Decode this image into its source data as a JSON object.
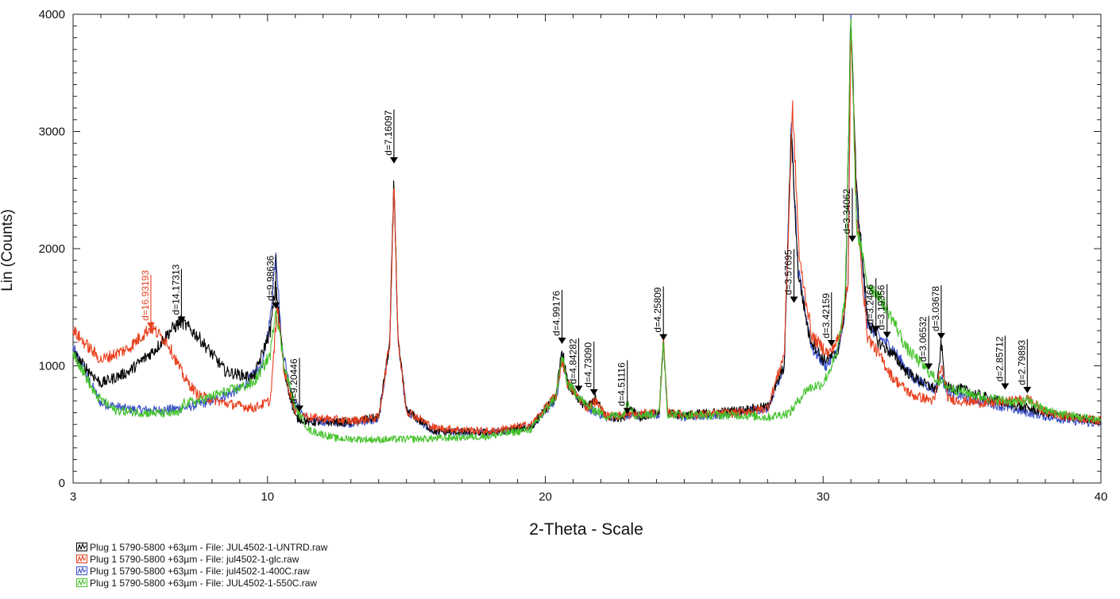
{
  "chart_data": {
    "type": "line",
    "xlabel": "2-Theta - Scale",
    "ylabel": "Lin (Counts)",
    "xlim": [
      3,
      40
    ],
    "ylim": [
      0,
      4000
    ],
    "x_ticks": [
      3,
      10,
      20,
      30,
      40
    ],
    "y_ticks": [
      0,
      1000,
      2000,
      3000,
      4000
    ],
    "grid": false,
    "legend_position": "bottom-left",
    "series": [
      {
        "name": "Plug 1 5790-5800 +63µm - File: JUL4502-1-UNTRD.raw",
        "color": "#000000",
        "points": [
          [
            3,
            1100
          ],
          [
            4,
            850
          ],
          [
            5,
            950
          ],
          [
            6,
            1150
          ],
          [
            6.5,
            1300
          ],
          [
            6.9,
            1380
          ],
          [
            7.5,
            1250
          ],
          [
            8.5,
            950
          ],
          [
            9.5,
            900
          ],
          [
            10.1,
            1300
          ],
          [
            10.3,
            1700
          ],
          [
            10.6,
            950
          ],
          [
            11,
            560
          ],
          [
            11.5,
            520
          ],
          [
            13,
            520
          ],
          [
            14,
            560
          ],
          [
            14.4,
            1200
          ],
          [
            14.55,
            2600
          ],
          [
            14.7,
            1200
          ],
          [
            15,
            620
          ],
          [
            16,
            440
          ],
          [
            18,
            430
          ],
          [
            19.5,
            480
          ],
          [
            20.4,
            750
          ],
          [
            20.6,
            1150
          ],
          [
            20.8,
            850
          ],
          [
            21.2,
            700
          ],
          [
            21.5,
            650
          ],
          [
            21.8,
            720
          ],
          [
            22.2,
            560
          ],
          [
            22.8,
            560
          ],
          [
            23.1,
            650
          ],
          [
            23.4,
            560
          ],
          [
            24.1,
            600
          ],
          [
            24.25,
            1220
          ],
          [
            24.4,
            600
          ],
          [
            25,
            580
          ],
          [
            27,
            620
          ],
          [
            28,
            650
          ],
          [
            28.6,
            1000
          ],
          [
            28.85,
            3000
          ],
          [
            29.1,
            1800
          ],
          [
            29.5,
            1250
          ],
          [
            30,
            1050
          ],
          [
            30.5,
            1100
          ],
          [
            30.8,
            1500
          ],
          [
            31,
            4000
          ],
          [
            31.2,
            2500
          ],
          [
            31.6,
            1400
          ],
          [
            32,
            1200
          ],
          [
            32.5,
            1100
          ],
          [
            33,
            950
          ],
          [
            33.6,
            850
          ],
          [
            34.1,
            800
          ],
          [
            34.25,
            1200
          ],
          [
            34.4,
            820
          ],
          [
            35,
            800
          ],
          [
            36,
            720
          ],
          [
            37,
            660
          ],
          [
            38,
            600
          ],
          [
            39,
            560
          ],
          [
            40,
            530
          ]
        ]
      },
      {
        "name": "Plug 1 5790-5800 +63µm - File: jul4502-1-glc.raw",
        "color": "#e8401e",
        "points": [
          [
            3,
            1300
          ],
          [
            4,
            1050
          ],
          [
            5,
            1150
          ],
          [
            5.8,
            1330
          ],
          [
            6.4,
            1200
          ],
          [
            7,
            900
          ],
          [
            7.5,
            750
          ],
          [
            8.5,
            680
          ],
          [
            9.5,
            640
          ],
          [
            10.1,
            700
          ],
          [
            10.35,
            1500
          ],
          [
            10.6,
            950
          ],
          [
            11,
            620
          ],
          [
            11.5,
            560
          ],
          [
            13,
            530
          ],
          [
            14,
            560
          ],
          [
            14.4,
            1200
          ],
          [
            14.55,
            2600
          ],
          [
            14.7,
            1200
          ],
          [
            15,
            620
          ],
          [
            16,
            470
          ],
          [
            18,
            440
          ],
          [
            19.5,
            500
          ],
          [
            20.4,
            750
          ],
          [
            20.6,
            1050
          ],
          [
            20.8,
            850
          ],
          [
            21.5,
            640
          ],
          [
            21.8,
            700
          ],
          [
            22.2,
            570
          ],
          [
            23,
            580
          ],
          [
            24.1,
            600
          ],
          [
            24.25,
            1220
          ],
          [
            24.4,
            600
          ],
          [
            25,
            580
          ],
          [
            27,
            600
          ],
          [
            28,
            640
          ],
          [
            28.6,
            1100
          ],
          [
            28.9,
            3200
          ],
          [
            29.15,
            1900
          ],
          [
            29.6,
            1250
          ],
          [
            30.2,
            1100
          ],
          [
            30.6,
            1250
          ],
          [
            30.9,
            1700
          ],
          [
            31,
            3900
          ],
          [
            31.2,
            2300
          ],
          [
            31.6,
            1250
          ],
          [
            32,
            1100
          ],
          [
            32.5,
            900
          ],
          [
            33.2,
            750
          ],
          [
            34,
            700
          ],
          [
            34.25,
            1000
          ],
          [
            34.5,
            720
          ],
          [
            35,
            700
          ],
          [
            36,
            680
          ],
          [
            36.8,
            700
          ],
          [
            37.4,
            720
          ],
          [
            38,
            600
          ],
          [
            39,
            560
          ],
          [
            40,
            530
          ]
        ]
      },
      {
        "name": "Plug 1 5790-5800 +63µm - File: jul4502-1-400C.raw",
        "color": "#3a4fc8",
        "points": [
          [
            3,
            1150
          ],
          [
            4,
            680
          ],
          [
            5,
            630
          ],
          [
            6,
            620
          ],
          [
            7,
            640
          ],
          [
            8,
            700
          ],
          [
            9,
            800
          ],
          [
            9.8,
            1000
          ],
          [
            10.1,
            1400
          ],
          [
            10.3,
            2000
          ],
          [
            10.5,
            1200
          ],
          [
            10.9,
            700
          ],
          [
            11.5,
            530
          ],
          [
            13,
            510
          ],
          [
            14,
            540
          ],
          [
            14.4,
            1200
          ],
          [
            14.55,
            2550
          ],
          [
            14.7,
            1200
          ],
          [
            15,
            600
          ],
          [
            16,
            440
          ],
          [
            18,
            430
          ],
          [
            19.5,
            480
          ],
          [
            20.4,
            720
          ],
          [
            20.6,
            1100
          ],
          [
            20.8,
            850
          ],
          [
            21.5,
            640
          ],
          [
            22.2,
            560
          ],
          [
            23,
            570
          ],
          [
            24.1,
            590
          ],
          [
            24.25,
            1200
          ],
          [
            24.4,
            590
          ],
          [
            25,
            560
          ],
          [
            27,
            600
          ],
          [
            28,
            640
          ],
          [
            28.6,
            1000
          ],
          [
            28.85,
            3050
          ],
          [
            29.1,
            1800
          ],
          [
            29.6,
            1150
          ],
          [
            30.1,
            1000
          ],
          [
            30.6,
            1150
          ],
          [
            30.9,
            1700
          ],
          [
            31,
            4000
          ],
          [
            31.2,
            2400
          ],
          [
            31.6,
            1350
          ],
          [
            32,
            1250
          ],
          [
            32.5,
            1150
          ],
          [
            33.2,
            900
          ],
          [
            34,
            800
          ],
          [
            34.25,
            900
          ],
          [
            34.5,
            780
          ],
          [
            35,
            740
          ],
          [
            36,
            680
          ],
          [
            37,
            620
          ],
          [
            38,
            570
          ],
          [
            39,
            530
          ],
          [
            40,
            500
          ]
        ]
      },
      {
        "name": "Plug 1 5790-5800 +63µm - File: JUL4502-1-550C.raw",
        "color": "#44c22c",
        "points": [
          [
            3,
            1120
          ],
          [
            3.8,
            750
          ],
          [
            4.5,
            620
          ],
          [
            5.5,
            600
          ],
          [
            6.8,
            590
          ],
          [
            7,
            680
          ],
          [
            7.5,
            700
          ],
          [
            8.5,
            780
          ],
          [
            9.5,
            850
          ],
          [
            10.1,
            1100
          ],
          [
            10.3,
            1500
          ],
          [
            10.6,
            1000
          ],
          [
            11,
            650
          ],
          [
            11.5,
            450
          ],
          [
            12.5,
            380
          ],
          [
            14,
            370
          ],
          [
            16,
            380
          ],
          [
            18,
            400
          ],
          [
            19.5,
            460
          ],
          [
            20.4,
            750
          ],
          [
            20.6,
            1080
          ],
          [
            20.8,
            850
          ],
          [
            21.5,
            660
          ],
          [
            22.2,
            570
          ],
          [
            22.8,
            580
          ],
          [
            23,
            700
          ],
          [
            23.2,
            580
          ],
          [
            24.1,
            590
          ],
          [
            24.25,
            1230
          ],
          [
            24.4,
            590
          ],
          [
            25,
            580
          ],
          [
            27,
            580
          ],
          [
            28,
            560
          ],
          [
            28.8,
            600
          ],
          [
            29.4,
            800
          ],
          [
            30,
            850
          ],
          [
            30.5,
            1100
          ],
          [
            30.8,
            1600
          ],
          [
            31,
            4000
          ],
          [
            31.2,
            2200
          ],
          [
            31.6,
            1700
          ],
          [
            32,
            1600
          ],
          [
            32.5,
            1400
          ],
          [
            33,
            1150
          ],
          [
            34,
            900
          ],
          [
            34.5,
            820
          ],
          [
            35,
            780
          ],
          [
            36,
            720
          ],
          [
            37,
            690
          ],
          [
            37.4,
            700
          ],
          [
            38,
            620
          ],
          [
            39,
            570
          ],
          [
            40,
            540
          ]
        ]
      }
    ],
    "annotations": [
      {
        "label": "d=16.93193",
        "x": 5.8,
        "y": 1330,
        "color": "#e8401e"
      },
      {
        "label": "d=14.17313",
        "x": 6.9,
        "y": 1380,
        "color": "#000000"
      },
      {
        "label": "d=9.98636",
        "x": 10.3,
        "y": 1500,
        "color": "#000000"
      },
      {
        "label": "d=9.20446",
        "x": 11.15,
        "y": 620,
        "color": "#000000"
      },
      {
        "label": "d=7.16097",
        "x": 14.55,
        "y": 2740,
        "color": "#000000"
      },
      {
        "label": "d=4.99176",
        "x": 20.6,
        "y": 1200,
        "color": "#000000"
      },
      {
        "label": "d=4.84282",
        "x": 21.2,
        "y": 790,
        "color": "#000000"
      },
      {
        "label": "d=4.73090",
        "x": 21.75,
        "y": 760,
        "color": "#000000"
      },
      {
        "label": "d=4.51116",
        "x": 22.95,
        "y": 600,
        "color": "#000000"
      },
      {
        "label": "d=4.25809",
        "x": 24.25,
        "y": 1230,
        "color": "#000000"
      },
      {
        "label": "d=3.57695",
        "x": 28.95,
        "y": 1550,
        "color": "#000000"
      },
      {
        "label": "d=3.42159",
        "x": 30.3,
        "y": 1180,
        "color": "#000000"
      },
      {
        "label": "d=3.34062",
        "x": 31.05,
        "y": 2070,
        "color": "#000000"
      },
      {
        "label": "d=3.2466",
        "x": 31.9,
        "y": 1300,
        "color": "#000000"
      },
      {
        "label": "d=3.19356",
        "x": 32.3,
        "y": 1250,
        "color": "#000000"
      },
      {
        "label": "d=3.06532",
        "x": 33.8,
        "y": 980,
        "color": "#000000"
      },
      {
        "label": "d=3.03678",
        "x": 34.25,
        "y": 1240,
        "color": "#000000"
      },
      {
        "label": "d=2.85712",
        "x": 36.55,
        "y": 810,
        "color": "#000000"
      },
      {
        "label": "d=2.79893",
        "x": 37.35,
        "y": 780,
        "color": "#000000"
      }
    ]
  }
}
